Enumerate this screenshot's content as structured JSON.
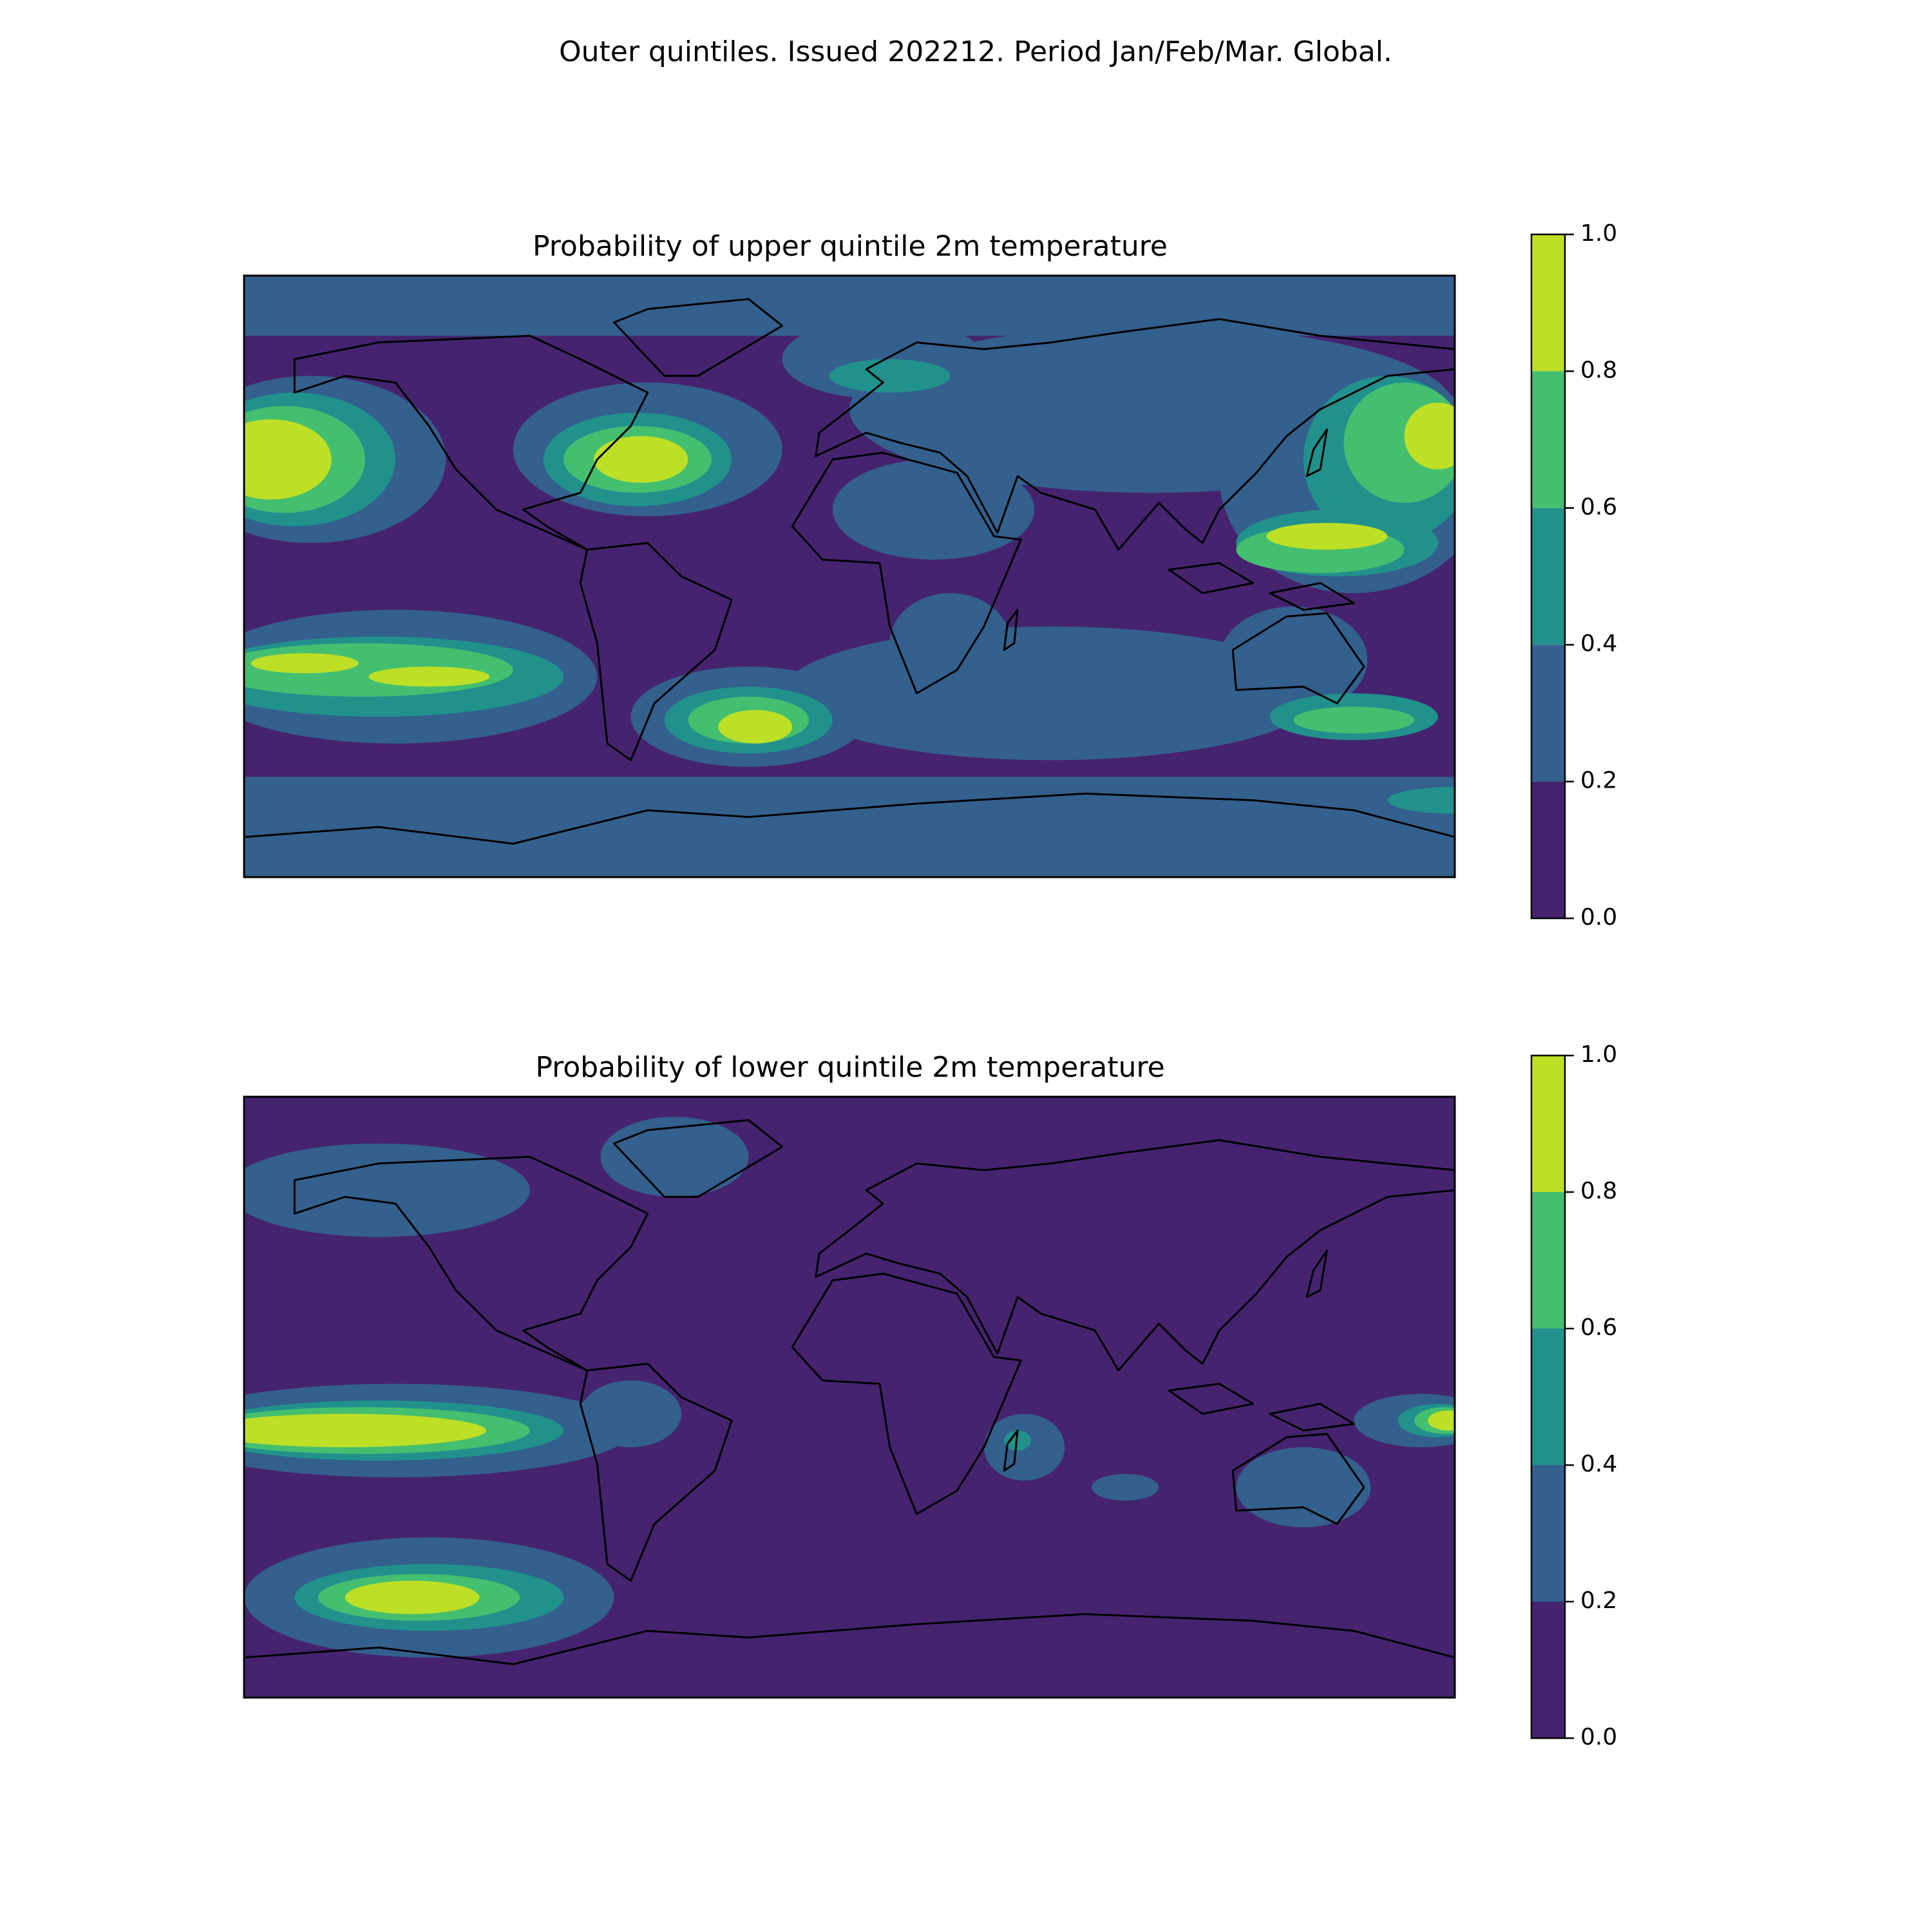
{
  "title": "Outer quintiles. Issued 202212. Period Jan/Feb/Mar. Global.",
  "chart_data": [
    {
      "type": "contour",
      "title": "Probability of upper quintile 2m temperature",
      "colors": [
        "#46236f",
        "#33608d",
        "#21918c",
        "#44bf70",
        "#bddf26"
      ],
      "cticks": [
        {
          "value": 0,
          "label": "0.0"
        },
        {
          "value": 0.2,
          "label": "0.2"
        },
        {
          "value": 0.4,
          "label": "0.4"
        },
        {
          "value": 0.6,
          "label": "0.6"
        },
        {
          "value": 0.8,
          "label": "0.8"
        },
        {
          "value": 1,
          "label": "1.0"
        }
      ],
      "clim": [
        0,
        1
      ]
    },
    {
      "type": "contour",
      "title": "Probability of lower quintile 2m temperature",
      "colors": [
        "#46236f",
        "#33608d",
        "#21918c",
        "#44bf70",
        "#bddf26"
      ],
      "cticks": [
        {
          "value": 0,
          "label": "0.0"
        },
        {
          "value": 0.2,
          "label": "0.2"
        },
        {
          "value": 0.4,
          "label": "0.4"
        },
        {
          "value": 0.6,
          "label": "0.6"
        },
        {
          "value": 0.8,
          "label": "0.8"
        },
        {
          "value": 1,
          "label": "1.0"
        }
      ],
      "clim": [
        0,
        1
      ]
    }
  ]
}
